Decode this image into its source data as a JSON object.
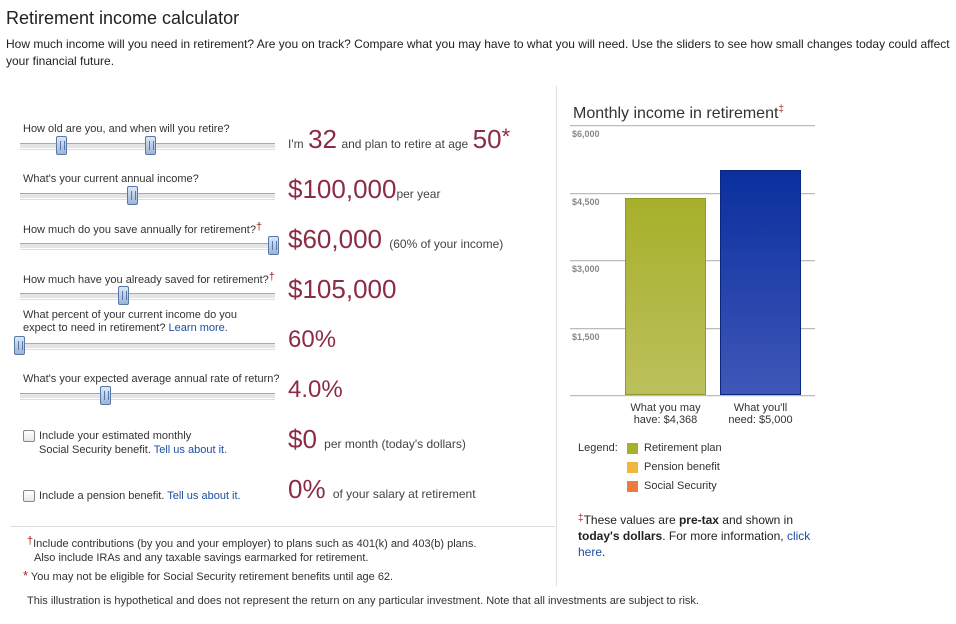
{
  "header": {
    "title": "Retirement income calculator",
    "intro": "How much income will you need in retirement? Are you on track? Compare what you may have to what you will need. Use the sliders to see how small changes today could affect your financial future."
  },
  "questions": {
    "age": {
      "label": "How old are you, and when will you retire?",
      "prefix": "I'm",
      "current_age": "32",
      "middle": "and plan to retire at age",
      "retire_age": "50",
      "mark": "*",
      "slider_current_age": 32,
      "slider_retire_age": 50
    },
    "income": {
      "label": "What's your current annual income?",
      "value": "$100,000",
      "suffix": "per year"
    },
    "savings": {
      "label": "How much do you save annually for retirement?",
      "dagger": "†",
      "value": "$60,000",
      "suffix": "(60% of your income)"
    },
    "saved": {
      "label": "How much have you already saved for retirement?",
      "dagger": "†",
      "value": "$105,000"
    },
    "percent": {
      "label_line1": "What percent of your current income do you",
      "label_line2": "expect to need in retirement?",
      "learn_more": "Learn more.",
      "value": "60%"
    },
    "rate": {
      "label": "What's your expected average annual rate of return?",
      "value": "4.0%"
    },
    "social_security": {
      "label_line1": "Include your estimated monthly",
      "label_line2": "Social Security benefit.",
      "link": "Tell us about it.",
      "value": "$0",
      "suffix": "per month (today's dollars)",
      "checked": false
    },
    "pension": {
      "label": "Include a pension benefit.",
      "link": "Tell us about it.",
      "value": "0%",
      "suffix": "of your salary at retirement",
      "checked": false
    }
  },
  "chart_data": {
    "type": "bar",
    "title": "Monthly income in retirement",
    "title_mark": "‡",
    "yticks": [
      "$6,000",
      "$4,500",
      "$3,000",
      "$1,500"
    ],
    "ylim": [
      0,
      6000
    ],
    "categories": [
      "What you may have: $4,368",
      "What you'll need: $5,000"
    ],
    "category_lines": [
      [
        "What you may",
        "have: $4,368"
      ],
      [
        "What you'll",
        "need: $5,000"
      ]
    ],
    "values": [
      4368,
      5000
    ],
    "colors": [
      "#a7b02a",
      "#1a3aa8"
    ],
    "legend": {
      "title": "Legend:",
      "items": [
        {
          "label": "Retirement plan",
          "color": "#a7b02a"
        },
        {
          "label": "Pension benefit",
          "color": "#f3b63c"
        },
        {
          "label": "Social Security",
          "color": "#ee7a3c"
        }
      ]
    }
  },
  "chart_note": {
    "mark": "‡",
    "part1": "These values are ",
    "bold1": "pre-tax",
    "part2": " and shown in ",
    "bold2": "today's dollars",
    "part3": ". For more information, ",
    "link": "click here",
    "part4": "."
  },
  "footnotes": {
    "dagger_mark": "†",
    "dagger_line1": "Include contributions (by you and your employer) to plans such as 401(k) and 403(b) plans.",
    "dagger_line2": "Also include IRAs and any taxable savings earmarked for retirement.",
    "star_mark": "*",
    "star_text": "You may not be eligible for Social Security retirement benefits until age 62.",
    "disclaimer": "This illustration is hypothetical and does not represent the return on any particular investment. Note that all investments are subject to risk."
  }
}
